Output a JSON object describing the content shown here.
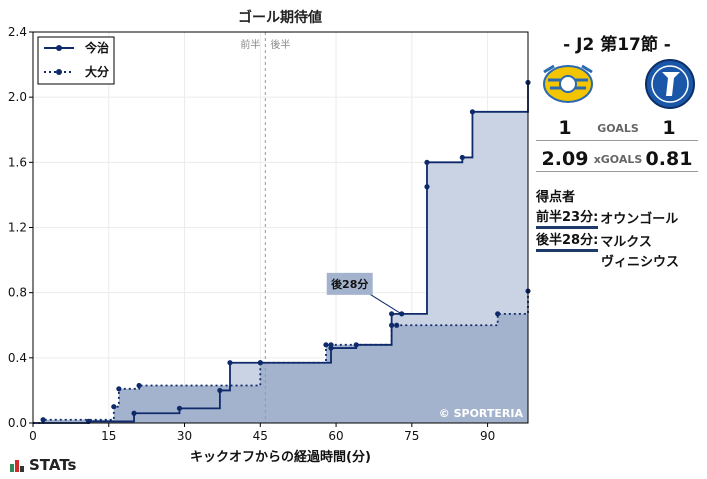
{
  "chart_data": {
    "type": "line",
    "step": true,
    "title": "ゴール期待値",
    "xlabel": "キックオフからの経過時間(分)",
    "ylabel": "",
    "xlim": [
      0,
      98
    ],
    "ylim": [
      0,
      2.4
    ],
    "xticks": [
      0,
      15,
      30,
      45,
      60,
      75,
      90
    ],
    "yticks": [
      0.0,
      0.4,
      0.8,
      1.2,
      1.6,
      2.0,
      2.4
    ],
    "ytick_labels": [
      "0.0",
      "0.4",
      "0.8",
      "1.2",
      "1.6",
      "2.0",
      "2.4"
    ],
    "halftime_line": 46,
    "halftime_labels": [
      "前半",
      "後半"
    ],
    "legend_position": "top-left",
    "series": [
      {
        "name": "今治",
        "line_style": "solid",
        "color": "#0e2a6b",
        "fill": "#c9d3e3",
        "x": [
          11,
          20,
          29,
          37,
          39,
          45,
          59,
          64,
          71,
          73,
          78,
          78,
          85,
          87,
          98
        ],
        "y": [
          0.01,
          0.06,
          0.09,
          0.2,
          0.37,
          0.37,
          0.46,
          0.48,
          0.67,
          0.67,
          1.45,
          1.6,
          1.63,
          1.91,
          2.09
        ]
      },
      {
        "name": "大分",
        "line_style": "dotted",
        "color": "#0e2a6b",
        "fill": "#a4b3cd",
        "x": [
          2,
          16,
          17,
          21,
          45,
          58,
          59,
          71,
          72,
          92,
          98
        ],
        "y": [
          0.02,
          0.1,
          0.21,
          0.23,
          0.37,
          0.48,
          0.48,
          0.6,
          0.6,
          0.67,
          0.81
        ]
      }
    ],
    "goal_marker": {
      "label": "後28分",
      "x": 73,
      "y": 0.67
    },
    "watermark": "© SPORTERIA"
  },
  "match": {
    "title": "- J2 第17節 -",
    "home_goals": "1",
    "away_goals": "1",
    "goals_label": "GOALS",
    "home_xg": "2.09",
    "away_xg": "0.81",
    "xg_label": "xGOALS"
  },
  "scorers": {
    "title": "得点者",
    "items": [
      {
        "time": "前半23分:",
        "name_lines": [
          "オウンゴール"
        ]
      },
      {
        "time": "後半28分:",
        "name_lines": [
          "マルクス",
          "ヴィニシウス"
        ]
      }
    ]
  },
  "brand": "STATs",
  "colors": {
    "line": "#0e2a6b",
    "home_fill": "#c9d3e3",
    "away_fill": "#a4b3cd",
    "accent_green": "#2e8b57",
    "accent_red": "#d02b2b",
    "home_crest": "#f2c500",
    "away_crest": "#1b57a8"
  }
}
